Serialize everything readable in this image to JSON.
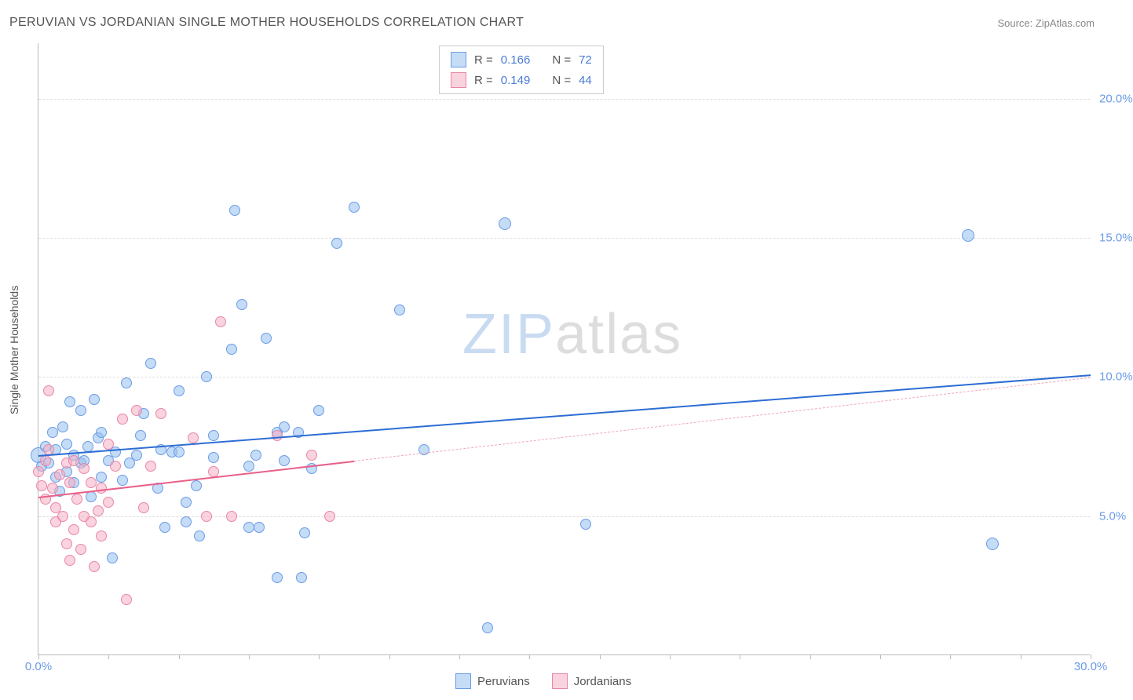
{
  "title": "PERUVIAN VS JORDANIAN SINGLE MOTHER HOUSEHOLDS CORRELATION CHART",
  "source": "Source: ZipAtlas.com",
  "y_axis_label": "Single Mother Households",
  "watermark": {
    "zip": "ZIP",
    "atlas": "atlas"
  },
  "chart": {
    "type": "scatter",
    "background_color": "#ffffff",
    "grid_color": "#dddddd",
    "axis_color": "#bbbbbb",
    "tick_label_color": "#6b9be8",
    "tick_fontsize": 15,
    "title_fontsize": 16,
    "xlim": [
      0,
      30
    ],
    "ylim": [
      0,
      22
    ],
    "x_ticks": [
      0,
      2,
      4,
      6,
      8,
      10,
      12,
      14,
      16,
      18,
      20,
      22,
      24,
      26,
      28,
      30
    ],
    "x_tick_labels": {
      "0": "0.0%",
      "30": "30.0%"
    },
    "y_grid": [
      5,
      10,
      15,
      20
    ],
    "y_tick_labels": {
      "5": "5.0%",
      "10": "10.0%",
      "15": "15.0%",
      "20": "20.0%"
    },
    "point_radius_small": 7,
    "point_radius_big": 11,
    "series": [
      {
        "name": "Peruvians",
        "fill": "rgba(148, 192, 236, 0.55)",
        "stroke": "#6b9be8",
        "trend": {
          "color": "#2d6dd4",
          "width": 2,
          "dash": "solid",
          "x1": 0,
          "y1": 7.2,
          "x2": 30,
          "y2": 10.1
        },
        "R": "0.166",
        "N": "72",
        "points": [
          [
            0.0,
            7.2,
            10
          ],
          [
            0.1,
            6.8,
            7
          ],
          [
            0.2,
            7.5,
            7
          ],
          [
            0.3,
            6.9,
            7
          ],
          [
            0.4,
            8.0,
            7
          ],
          [
            0.5,
            6.4,
            7
          ],
          [
            0.5,
            7.4,
            7
          ],
          [
            0.6,
            5.9,
            7
          ],
          [
            0.7,
            8.2,
            7
          ],
          [
            0.8,
            6.6,
            7
          ],
          [
            0.8,
            7.6,
            7
          ],
          [
            0.9,
            9.1,
            7
          ],
          [
            1.0,
            7.2,
            7
          ],
          [
            1.0,
            6.2,
            7
          ],
          [
            1.2,
            8.8,
            7
          ],
          [
            1.2,
            6.9,
            7
          ],
          [
            1.3,
            7.0,
            7
          ],
          [
            1.4,
            7.5,
            7
          ],
          [
            1.5,
            5.7,
            7
          ],
          [
            1.6,
            9.2,
            7
          ],
          [
            1.7,
            7.8,
            7
          ],
          [
            1.8,
            6.4,
            7
          ],
          [
            1.8,
            8.0,
            7
          ],
          [
            2.0,
            7.0,
            7
          ],
          [
            2.1,
            3.5,
            7
          ],
          [
            2.2,
            7.3,
            7
          ],
          [
            2.4,
            6.3,
            7
          ],
          [
            2.5,
            9.8,
            7
          ],
          [
            2.6,
            6.9,
            7
          ],
          [
            2.8,
            7.2,
            7
          ],
          [
            2.9,
            7.9,
            7
          ],
          [
            3.0,
            8.7,
            7
          ],
          [
            3.2,
            10.5,
            7
          ],
          [
            3.4,
            6.0,
            7
          ],
          [
            3.5,
            7.4,
            7
          ],
          [
            3.6,
            4.6,
            7
          ],
          [
            3.8,
            7.3,
            7
          ],
          [
            4.0,
            9.5,
            7
          ],
          [
            4.0,
            7.3,
            7
          ],
          [
            4.2,
            5.5,
            7
          ],
          [
            4.2,
            4.8,
            7
          ],
          [
            4.5,
            6.1,
            7
          ],
          [
            4.6,
            4.3,
            7
          ],
          [
            4.8,
            10.0,
            7
          ],
          [
            5.0,
            7.1,
            7
          ],
          [
            5.5,
            11.0,
            7
          ],
          [
            5.6,
            16.0,
            7
          ],
          [
            5.8,
            12.6,
            7
          ],
          [
            6.0,
            6.8,
            7
          ],
          [
            6.0,
            4.6,
            7
          ],
          [
            6.2,
            7.2,
            7
          ],
          [
            6.3,
            4.6,
            7
          ],
          [
            6.5,
            11.4,
            7
          ],
          [
            6.8,
            2.8,
            7
          ],
          [
            6.8,
            8.0,
            7
          ],
          [
            7.0,
            8.2,
            7
          ],
          [
            7.4,
            8.0,
            7
          ],
          [
            7.5,
            2.8,
            7
          ],
          [
            7.6,
            4.4,
            7
          ],
          [
            7.8,
            6.7,
            7
          ],
          [
            8.0,
            8.8,
            7
          ],
          [
            8.5,
            14.8,
            7
          ],
          [
            9.0,
            16.1,
            7
          ],
          [
            10.3,
            12.4,
            7
          ],
          [
            11.0,
            7.4,
            7
          ],
          [
            12.8,
            1.0,
            7
          ],
          [
            13.3,
            15.5,
            8
          ],
          [
            15.6,
            4.7,
            7
          ],
          [
            26.5,
            15.1,
            8
          ],
          [
            27.2,
            4.0,
            8
          ],
          [
            7.0,
            7.0,
            7
          ],
          [
            5.0,
            7.9,
            7
          ]
        ]
      },
      {
        "name": "Jordanians",
        "fill": "rgba(244, 175, 195, 0.55)",
        "stroke": "#e986a8",
        "trend_solid": {
          "color": "#e86089",
          "width": 2,
          "x1": 0,
          "y1": 5.7,
          "x2": 9,
          "y2": 7.0
        },
        "trend_dash": {
          "color": "#f0a7bb",
          "width": 1,
          "x1": 9,
          "y1": 7.0,
          "x2": 30,
          "y2": 10.0
        },
        "R": "0.149",
        "N": "44",
        "points": [
          [
            0.0,
            6.6,
            7
          ],
          [
            0.1,
            6.1,
            7
          ],
          [
            0.2,
            5.6,
            7
          ],
          [
            0.2,
            7.0,
            7
          ],
          [
            0.3,
            7.4,
            7
          ],
          [
            0.3,
            9.5,
            7
          ],
          [
            0.4,
            6.0,
            7
          ],
          [
            0.5,
            5.3,
            7
          ],
          [
            0.5,
            4.8,
            7
          ],
          [
            0.6,
            6.5,
            7
          ],
          [
            0.7,
            5.0,
            7
          ],
          [
            0.8,
            4.0,
            7
          ],
          [
            0.8,
            6.9,
            7
          ],
          [
            0.9,
            3.4,
            7
          ],
          [
            0.9,
            6.2,
            7
          ],
          [
            1.0,
            7.0,
            7
          ],
          [
            1.0,
            4.5,
            7
          ],
          [
            1.1,
            5.6,
            7
          ],
          [
            1.2,
            3.8,
            7
          ],
          [
            1.3,
            5.0,
            7
          ],
          [
            1.3,
            6.7,
            7
          ],
          [
            1.5,
            4.8,
            7
          ],
          [
            1.5,
            6.2,
            7
          ],
          [
            1.6,
            3.2,
            7
          ],
          [
            1.7,
            5.2,
            7
          ],
          [
            1.8,
            6.0,
            7
          ],
          [
            1.8,
            4.3,
            7
          ],
          [
            2.0,
            7.6,
            7
          ],
          [
            2.0,
            5.5,
            7
          ],
          [
            2.2,
            6.8,
            7
          ],
          [
            2.4,
            8.5,
            7
          ],
          [
            2.5,
            2.0,
            7
          ],
          [
            2.8,
            8.8,
            7
          ],
          [
            3.0,
            5.3,
            7
          ],
          [
            3.2,
            6.8,
            7
          ],
          [
            3.5,
            8.7,
            7
          ],
          [
            4.4,
            7.8,
            7
          ],
          [
            4.8,
            5.0,
            7
          ],
          [
            5.0,
            6.6,
            7
          ],
          [
            5.2,
            12.0,
            7
          ],
          [
            5.5,
            5.0,
            7
          ],
          [
            6.8,
            7.9,
            7
          ],
          [
            7.8,
            7.2,
            7
          ],
          [
            8.3,
            5.0,
            7
          ]
        ]
      }
    ]
  },
  "legend_top": {
    "labels": {
      "R": "R =",
      "N": "N ="
    }
  },
  "legend_bottom": {
    "items": [
      "Peruvians",
      "Jordanians"
    ]
  }
}
